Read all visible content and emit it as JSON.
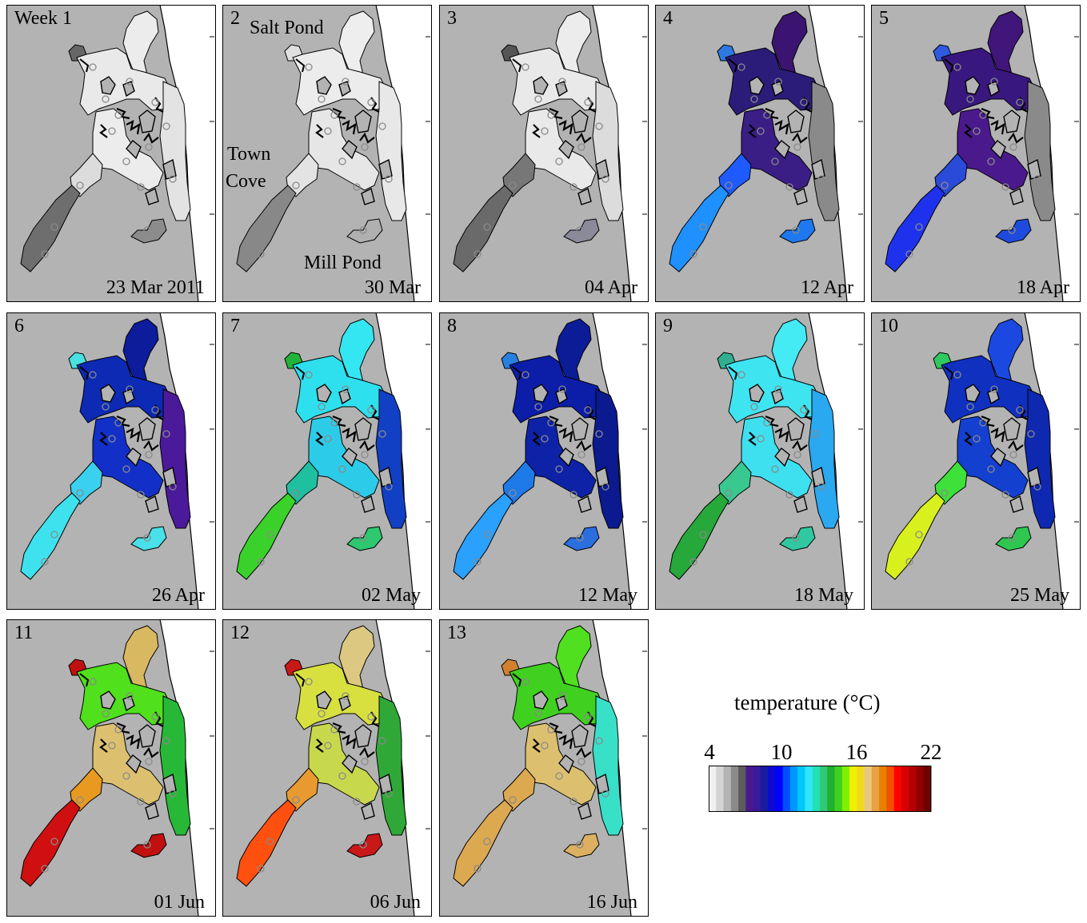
{
  "panels": [
    {
      "label": "Week 1",
      "date": "23 Mar 2011",
      "colors": {
        "north": "#ececec",
        "upper": "#e9e9e9",
        "mid": "#ececec",
        "ocean_side": "#e3e3e3",
        "town_cove": "#dcdcdc",
        "lower": "#6e6e6e",
        "mill": "#8c8c8c",
        "salt": "#666666"
      }
    },
    {
      "label": "2",
      "date": "30 Mar",
      "colors": {
        "north": "#eeeeee",
        "upper": "#ececec",
        "mid": "#e6e6e6",
        "ocean_side": "#e8e8e8",
        "town_cove": "#e3e3e3",
        "lower": "#888888",
        "mill": "#b0b0b0",
        "salt": "#e0e0e0"
      }
    },
    {
      "label": "3",
      "date": "04 Apr",
      "colors": {
        "north": "#ececec",
        "upper": "#e9e9e9",
        "mid": "#e9e9e9",
        "ocean_side": "#dcdcdc",
        "town_cove": "#777777",
        "lower": "#6a6a6a",
        "mill": "#8a8a9a",
        "salt": "#555555"
      }
    },
    {
      "label": "4",
      "date": "12 Apr",
      "colors": {
        "north": "#3a1470",
        "upper": "#2c1c7a",
        "mid": "#3a1e86",
        "ocean_side": "#8a8a8a",
        "town_cove": "#1e5aff",
        "lower": "#1e90ff",
        "mill": "#1e78f0",
        "salt": "#2e78e0"
      }
    },
    {
      "label": "5",
      "date": "18 Apr",
      "colors": {
        "north": "#40167a",
        "upper": "#38187e",
        "mid": "#4a1a8c",
        "ocean_side": "#8a8a8a",
        "town_cove": "#2a4ad8",
        "lower": "#1e32ee",
        "mill": "#1e4ade",
        "salt": "#2e5ae0"
      }
    },
    {
      "label": "6",
      "date": "26 Apr",
      "colors": {
        "north": "#0c1c9a",
        "upper": "#0c2ab4",
        "mid": "#1230c8",
        "ocean_side": "#4a1a9a",
        "town_cove": "#3ad0f0",
        "lower": "#3ee2ee",
        "mill": "#4ae0ea",
        "salt": "#4ae0e0"
      }
    },
    {
      "label": "7",
      "date": "02 May",
      "colors": {
        "north": "#34e6f2",
        "upper": "#2ee0ee",
        "mid": "#2ccce8",
        "ocean_side": "#1240c4",
        "town_cove": "#1ec0a0",
        "lower": "#3ad22a",
        "mill": "#2ec870",
        "salt": "#22b438"
      }
    },
    {
      "label": "8",
      "date": "12 May",
      "colors": {
        "north": "#0c1c96",
        "upper": "#0c1ea8",
        "mid": "#0e22a8",
        "ocean_side": "#0c1a90",
        "town_cove": "#1e7ae8",
        "lower": "#2aa0ff",
        "mill": "#2a6ee0",
        "salt": "#2a80e0"
      }
    },
    {
      "label": "9",
      "date": "18 May",
      "colors": {
        "north": "#44eaf4",
        "upper": "#3ee4f0",
        "mid": "#3ee0f0",
        "ocean_side": "#2aa8f0",
        "town_cove": "#38c890",
        "lower": "#26a83a",
        "mill": "#30c8a0",
        "salt": "#30b090"
      }
    },
    {
      "label": "10",
      "date": "25 May",
      "colors": {
        "north": "#1a48e0",
        "upper": "#1030c0",
        "mid": "#1440d0",
        "ocean_side": "#0e28b0",
        "town_cove": "#3ee03a",
        "lower": "#d8f01e",
        "mill": "#2ec850",
        "salt": "#30c860"
      }
    },
    {
      "label": "11",
      "date": "01 Jun",
      "colors": {
        "north": "#d8b860",
        "upper": "#50e01c",
        "mid": "#dcc070",
        "ocean_side": "#28b838",
        "town_cove": "#e89a20",
        "lower": "#d01010",
        "mill": "#c01010",
        "salt": "#c01010"
      }
    },
    {
      "label": "12",
      "date": "06 Jun",
      "colors": {
        "north": "#dcc880",
        "upper": "#d8e040",
        "mid": "#c8d84c",
        "ocean_side": "#30a838",
        "town_cove": "#e89a30",
        "lower": "#ff5010",
        "mill": "#c81818",
        "salt": "#c81818"
      }
    },
    {
      "label": "13",
      "date": "16 Jun",
      "colors": {
        "north": "#50e020",
        "upper": "#40d020",
        "mid": "#dcc070",
        "ocean_side": "#38e0c8",
        "town_cove": "#dca850",
        "lower": "#dca850",
        "mill": "#dcb060",
        "salt": "#d08030"
      }
    }
  ],
  "place_labels": {
    "salt_pond": "Salt Pond",
    "town_cove_line1": "Town",
    "town_cove_line2": "Cove",
    "mill_pond": "Mill Pond"
  },
  "legend": {
    "title": "temperature (°C)",
    "ticks": [
      "4",
      "10",
      "16",
      "22"
    ],
    "colors": [
      "#f0f0f0",
      "#d4d4d4",
      "#b4b4b4",
      "#8a8a8a",
      "#5c5c5c",
      "#4a1a8c",
      "#3a1a9a",
      "#1a1aa0",
      "#0c0cd0",
      "#0000ff",
      "#0050ff",
      "#0096ff",
      "#00c8ff",
      "#30e6ff",
      "#20e0b4",
      "#30c878",
      "#20b030",
      "#40d020",
      "#80f000",
      "#f0f000",
      "#f0d820",
      "#e8c880",
      "#e8a040",
      "#e88000",
      "#f05000",
      "#ff0000",
      "#d80000",
      "#b40000",
      "#900000",
      "#700000"
    ]
  }
}
